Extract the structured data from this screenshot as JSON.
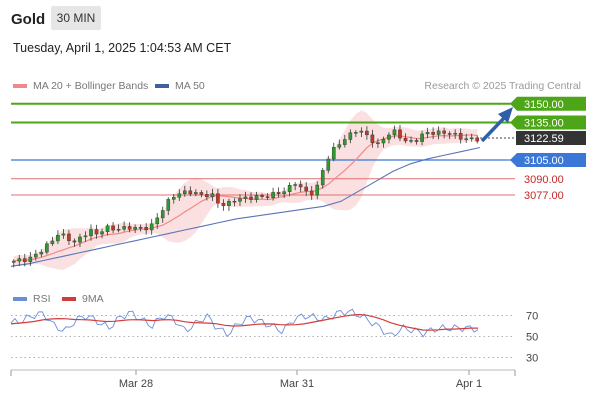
{
  "header": {
    "title": "Gold",
    "timeframe": "30 MIN",
    "timestamp": "Tuesday, April 1, 2025 1:04:53 AM CET"
  },
  "legend": {
    "ma20_label": "MA 20 + Bollinger Bands",
    "ma50_label": "MA 50",
    "source": "Research © 2025 Trading Central"
  },
  "rsi_legend": {
    "rsi_label": "RSI",
    "ma_label": "9MA"
  },
  "colors": {
    "resistance": "#4da518",
    "pivot": "#3a77d6",
    "support": "#e07070",
    "current": "#333333",
    "candle_up": "#2e9a2e",
    "candle_down": "#c0392b",
    "ma20": "#f08a8a",
    "ma50": "#5a74b8",
    "band_fill": "#f8d6d6",
    "rsi": "#6a8ed8",
    "rsi_ma": "#d43c3c",
    "arrow": "#2f5fa8"
  },
  "chart_data": [
    {
      "type": "candlestick",
      "title": "Gold",
      "xlabel": "",
      "ylabel": "",
      "x_ticks": [
        "Mar 28",
        "Mar 31",
        "Apr 1"
      ],
      "levels": [
        {
          "label": "3150.00",
          "kind": "resistance"
        },
        {
          "label": "3135.00",
          "kind": "resistance"
        },
        {
          "label": "3122.59",
          "kind": "current"
        },
        {
          "label": "3105.00",
          "kind": "pivot"
        },
        {
          "label": "3090.00",
          "kind": "support"
        },
        {
          "label": "3077.00",
          "kind": "support"
        }
      ],
      "ylim": [
        3005,
        3157
      ],
      "price_path": [
        3023,
        3025,
        3027,
        3030,
        3033,
        3040,
        3048,
        3043,
        3038,
        3043,
        3050,
        3046,
        3050,
        3049,
        3051,
        3052,
        3050,
        3049,
        3052,
        3061,
        3069,
        3075,
        3079,
        3081,
        3078,
        3075,
        3078,
        3071,
        3069,
        3072,
        3074,
        3076,
        3076,
        3074,
        3077,
        3080,
        3082,
        3086,
        3081,
        3078,
        3085,
        3102,
        3112,
        3120,
        3125,
        3128,
        3126,
        3122,
        3118,
        3124,
        3127,
        3123,
        3120,
        3121,
        3125,
        3127,
        3128,
        3127,
        3124,
        3122,
        3123,
        3122
      ],
      "ma50_path": [
        3020,
        3022,
        3025,
        3028,
        3031,
        3034,
        3037,
        3040,
        3043,
        3046,
        3049,
        3052,
        3055,
        3058,
        3060,
        3062,
        3064,
        3066,
        3068,
        3072,
        3080,
        3088,
        3096,
        3102,
        3106,
        3109,
        3112,
        3115
      ],
      "trend_arrow": "up"
    },
    {
      "type": "line",
      "title": "RSI",
      "levels": [
        70,
        50,
        30
      ],
      "ylim": [
        20,
        80
      ],
      "series": [
        {
          "name": "RSI",
          "values": [
            63,
            65,
            70,
            72,
            60,
            55,
            66,
            70,
            64,
            58,
            68,
            73,
            66,
            60,
            70,
            67,
            55,
            62,
            70,
            58,
            52,
            63,
            68,
            64,
            60,
            55,
            66,
            70,
            68,
            66,
            72,
            74,
            71,
            65,
            58,
            50,
            58,
            56,
            53,
            57,
            58,
            58,
            58,
            57
          ]
        },
        {
          "name": "9MA",
          "values": [
            62,
            63,
            64,
            66,
            67,
            67,
            66,
            66,
            65,
            64,
            65,
            66,
            66,
            65,
            66,
            66,
            64,
            63,
            63,
            62,
            60,
            60,
            61,
            62,
            62,
            61,
            61,
            62,
            64,
            66,
            68,
            70,
            71,
            70,
            67,
            63,
            60,
            58,
            56,
            56,
            57,
            57,
            58,
            58
          ]
        }
      ]
    }
  ]
}
